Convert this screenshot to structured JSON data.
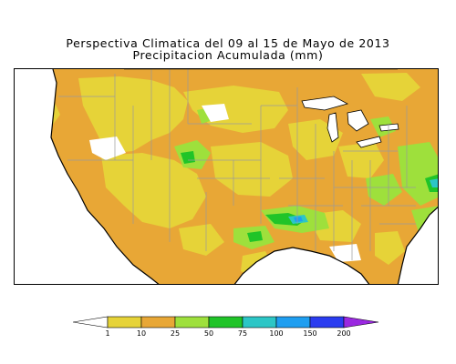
{
  "title": {
    "line1": "Perspectiva Climatica del 09 al 15 de Mayo de 2013",
    "line2": "Precipitacion Acumulada (mm)"
  },
  "legend": {
    "ticks": [
      "1",
      "10",
      "25",
      "50",
      "75",
      "100",
      "150",
      "200"
    ],
    "colors": {
      "below_min": "#ffffff",
      "c1_10": "#e6d338",
      "c10_25": "#e8a736",
      "c25_50": "#9ee03c",
      "c50_75": "#20c428",
      "c75_100": "#2cc6c6",
      "c100_150": "#1e9ef0",
      "c150_200": "#2a3cf0",
      "above_max": "#9a28e0"
    }
  },
  "map": {
    "ocean_color": "#ffffff",
    "border_color": "#000000",
    "state_line_color": "#9a9a9a"
  }
}
